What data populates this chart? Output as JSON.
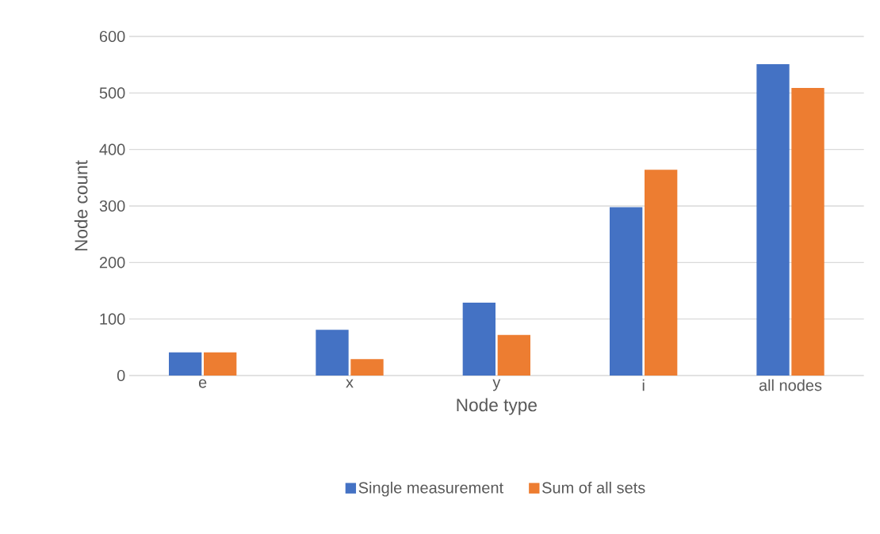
{
  "chart_data": {
    "type": "bar",
    "xlabel": "Node type",
    "ylabel": "Node count",
    "categories": [
      "e",
      "x",
      "y",
      "i",
      "all nodes"
    ],
    "series": [
      {
        "name": "Single measurement",
        "color": "#4472c4",
        "values": [
          41,
          81,
          129,
          298,
          551
        ]
      },
      {
        "name": "Sum of all sets",
        "color": "#ed7d31",
        "values": [
          41,
          29,
          72,
          364,
          509
        ]
      }
    ],
    "ylim": [
      0,
      600
    ],
    "yticks": [
      0,
      100,
      200,
      300,
      400,
      500,
      600
    ],
    "grid": "y",
    "legend": "bottom"
  }
}
